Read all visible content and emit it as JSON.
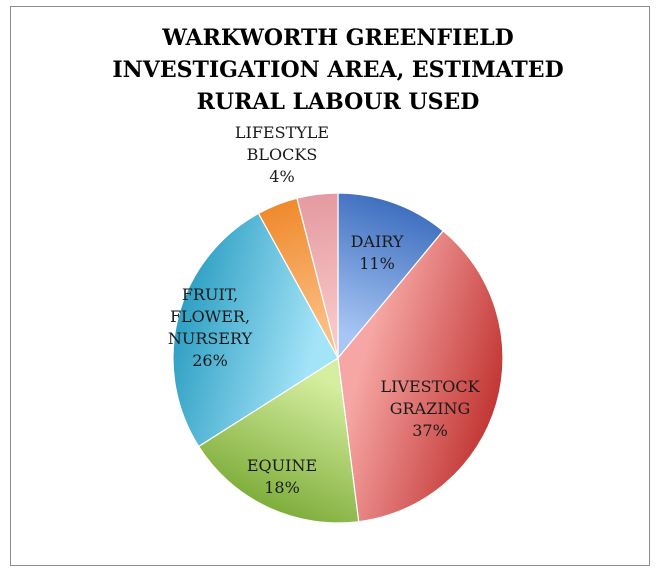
{
  "chart_data": {
    "type": "pie",
    "title_lines": [
      "WARKWORTH GREENFIELD",
      "INVESTIGATION AREA, ESTIMATED",
      "RURAL LABOUR USED"
    ],
    "start_angle_deg": 0,
    "direction": "clockwise",
    "slices": [
      {
        "label_lines": [
          "DAIRY"
        ],
        "value": 11,
        "value_label": "11%",
        "color_light": "#a8c6f4",
        "color_dark": "#3f6fbf"
      },
      {
        "label_lines": [
          "LIVESTOCK",
          "GRAZING"
        ],
        "value": 37,
        "value_label": "37%",
        "color_light": "#f6a6a4",
        "color_dark": "#c23634"
      },
      {
        "label_lines": [
          "EQUINE"
        ],
        "value": 18,
        "value_label": "18%",
        "color_light": "#d6eea0",
        "color_dark": "#7fae3c"
      },
      {
        "label_lines": [
          "FRUIT,",
          "FLOWER,",
          "NURSERY"
        ],
        "value": 26,
        "value_label": "26%",
        "color_light": "#a4e4f8",
        "color_dark": "#2e9fc3"
      },
      {
        "label_lines": [],
        "value": 4,
        "value_label": "",
        "color_light": "#fbc086",
        "color_dark": "#ef8a2d"
      },
      {
        "label_lines": [
          "LIFESTYLE",
          "BLOCKS"
        ],
        "value": 4,
        "value_label": "4%",
        "color_light": "#f8c8c8",
        "color_dark": "#e49aa0"
      }
    ]
  }
}
